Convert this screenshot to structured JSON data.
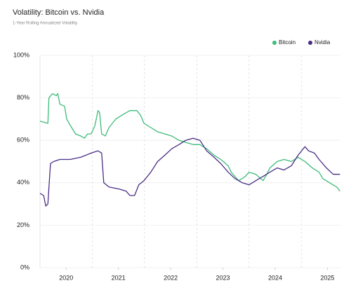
{
  "chart_data": {
    "type": "line",
    "title": "Volatility: Bitcoin vs. Nvidia",
    "subtitle": "1-Year Rolling Annualized Volatility",
    "legend": "top-right",
    "grid": true,
    "xlim": [
      2019.5,
      2025.25
    ],
    "xticks": [
      2020,
      2021,
      2022,
      2023,
      2024,
      2025
    ],
    "xminorticks": [
      2020.5,
      2021.5,
      2022.5,
      2023.5,
      2024.5
    ],
    "ylim": [
      0,
      100
    ],
    "yticks": [
      {
        "value": 0,
        "label": "0%"
      },
      {
        "value": 20,
        "label": "20%"
      },
      {
        "value": 40,
        "label": "40%"
      },
      {
        "value": 60,
        "label": "60%"
      },
      {
        "value": 80,
        "label": "80%"
      },
      {
        "value": 100,
        "label": "100%"
      }
    ],
    "series": [
      {
        "name": "Bitcoin",
        "color": "#3dbb7a",
        "x": [
          2019.5,
          2019.65,
          2019.67,
          2019.74,
          2019.81,
          2019.84,
          2019.88,
          2019.97,
          2020.01,
          2020.08,
          2020.18,
          2020.28,
          2020.35,
          2020.41,
          2020.48,
          2020.55,
          2020.61,
          2020.64,
          2020.68,
          2020.75,
          2020.82,
          2020.95,
          2021.08,
          2021.22,
          2021.35,
          2021.42,
          2021.49,
          2021.62,
          2021.75,
          2021.89,
          2022.02,
          2022.16,
          2022.29,
          2022.43,
          2022.56,
          2022.69,
          2022.83,
          2022.96,
          2023.1,
          2023.16,
          2023.23,
          2023.3,
          2023.37,
          2023.43,
          2023.5,
          2023.63,
          2023.77,
          2023.84,
          2023.9,
          2024.04,
          2024.17,
          2024.31,
          2024.44,
          2024.57,
          2024.71,
          2024.84,
          2024.91,
          2025.04,
          2025.18,
          2025.24
        ],
        "values": [
          69,
          68,
          80,
          82,
          81,
          82,
          77,
          76,
          70,
          67,
          63,
          62,
          61,
          63,
          63,
          67,
          74,
          73,
          63,
          62,
          66,
          70,
          72,
          74,
          74,
          72,
          68,
          66,
          64,
          63,
          62,
          60,
          59,
          58,
          58,
          56,
          53,
          51,
          48,
          45,
          43,
          41,
          42,
          43,
          45,
          44,
          41,
          44,
          47,
          50,
          51,
          50,
          52,
          50,
          47,
          45,
          42,
          40,
          38,
          36
        ]
      },
      {
        "name": "Nvidia",
        "color": "#4a2d85",
        "x": [
          2019.5,
          2019.57,
          2019.61,
          2019.65,
          2019.7,
          2019.76,
          2019.88,
          2020.08,
          2020.28,
          2020.48,
          2020.61,
          2020.68,
          2020.72,
          2020.82,
          2021.02,
          2021.15,
          2021.22,
          2021.31,
          2021.39,
          2021.49,
          2021.62,
          2021.75,
          2021.89,
          2022.02,
          2022.16,
          2022.29,
          2022.43,
          2022.56,
          2022.69,
          2022.83,
          2022.96,
          2023.1,
          2023.23,
          2023.37,
          2023.5,
          2023.63,
          2023.77,
          2023.9,
          2024.04,
          2024.17,
          2024.31,
          2024.44,
          2024.57,
          2024.64,
          2024.75,
          2024.84,
          2024.98,
          2025.11,
          2025.24
        ],
        "values": [
          35,
          34,
          29,
          30,
          49,
          50,
          51,
          51,
          52,
          54,
          55,
          54,
          40,
          38,
          37,
          36,
          34,
          34,
          39,
          41,
          45,
          50,
          53,
          56,
          58,
          60,
          61,
          60,
          55,
          52,
          49,
          45,
          42,
          40,
          39,
          41,
          43,
          45,
          47,
          46,
          48,
          53,
          57,
          55,
          54,
          51,
          47,
          44,
          44
        ]
      }
    ]
  }
}
